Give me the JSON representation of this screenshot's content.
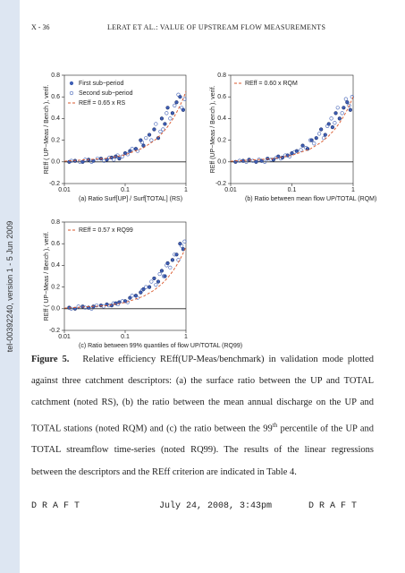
{
  "header": {
    "page": "X - 36",
    "running_title": "LERAT ET AL.: VALUE OF UPSTREAM FLOW MEASUREMENTS"
  },
  "side_stamp": "tel-00392240, version 1 - 5 Jun 2009",
  "chart_data": [
    {
      "type": "scatter",
      "xlabel": "(a) Ratio Surf[UP] / Surf[TOTAL] (RS)",
      "ylabel": "REff ( UP−Meas / Bench ), verif.",
      "xscale": "log",
      "xlim": [
        0.01,
        1
      ],
      "ylim": [
        -0.2,
        0.8
      ],
      "xticks": [
        0.01,
        0.1,
        1
      ],
      "yticks": [
        -0.2,
        {
          "value": 0,
          "label": "0.0"
        },
        0.2,
        0.4,
        0.6,
        0.8
      ],
      "legend": "upper left",
      "series": [
        {
          "name": "First sub−period",
          "style": "filled",
          "color": "#3f5fb5",
          "x": [
            0.012,
            0.015,
            0.02,
            0.025,
            0.03,
            0.04,
            0.05,
            0.06,
            0.07,
            0.08,
            0.1,
            0.12,
            0.15,
            0.18,
            0.2,
            0.25,
            0.3,
            0.35,
            0.4,
            0.45,
            0.5,
            0.6,
            0.7,
            0.8,
            0.9
          ],
          "values": [
            0,
            0.01,
            0,
            0.02,
            0.01,
            0.03,
            0.02,
            0.04,
            0.05,
            0.03,
            0.08,
            0.1,
            0.12,
            0.2,
            0.15,
            0.25,
            0.3,
            0.22,
            0.4,
            0.35,
            0.5,
            0.45,
            0.55,
            0.6,
            0.48
          ]
        },
        {
          "name": "Second sub−period",
          "style": "open",
          "color": "#3f5fb5",
          "x": [
            0.013,
            0.018,
            0.022,
            0.028,
            0.035,
            0.045,
            0.055,
            0.065,
            0.075,
            0.09,
            0.11,
            0.13,
            0.16,
            0.19,
            0.22,
            0.27,
            0.32,
            0.38,
            0.42,
            0.48,
            0.55,
            0.65,
            0.75,
            0.85,
            0.95
          ],
          "values": [
            0.01,
            0,
            0.02,
            0,
            0.03,
            0.01,
            0.04,
            0.02,
            0.06,
            0.05,
            0.07,
            0.12,
            0.1,
            0.18,
            0.22,
            0.2,
            0.35,
            0.28,
            0.3,
            0.45,
            0.4,
            0.52,
            0.62,
            0.5,
            0.58
          ]
        },
        {
          "name": "REff = 0.65 x RS",
          "style": "line",
          "color": "#d9572b",
          "x": [
            0.01,
            0.05,
            0.1,
            0.2,
            0.3,
            0.4,
            0.5,
            0.6,
            0.7,
            0.8,
            0.9,
            1
          ],
          "values": [
            0.0065,
            0.0325,
            0.065,
            0.13,
            0.195,
            0.26,
            0.325,
            0.39,
            0.455,
            0.52,
            0.585,
            0.65
          ]
        }
      ]
    },
    {
      "type": "scatter",
      "xlabel": "(b) Ratio between mean flow UP/TOTAL (RQM)",
      "ylabel": "REff (UP−Meas / Bench ), verif.",
      "xscale": "log",
      "xlim": [
        0.01,
        1
      ],
      "ylim": [
        -0.2,
        0.8
      ],
      "xticks": [
        0.01,
        0.1,
        1
      ],
      "yticks": [
        -0.2,
        {
          "value": 0,
          "label": "0.0"
        },
        0.2,
        0.4,
        0.6,
        0.8
      ],
      "legend": "upper left",
      "series": [
        {
          "style": "filled",
          "color": "#3f5fb5",
          "x": [
            0.012,
            0.016,
            0.02,
            0.026,
            0.032,
            0.04,
            0.05,
            0.06,
            0.07,
            0.085,
            0.1,
            0.12,
            0.15,
            0.18,
            0.21,
            0.25,
            0.3,
            0.35,
            0.4,
            0.46,
            0.52,
            0.6,
            0.7,
            0.8,
            0.9
          ],
          "values": [
            0,
            0.01,
            0.02,
            0,
            0.01,
            0.03,
            0.02,
            0.05,
            0.04,
            0.06,
            0.08,
            0.1,
            0.15,
            0.12,
            0.2,
            0.22,
            0.3,
            0.25,
            0.35,
            0.32,
            0.45,
            0.4,
            0.5,
            0.55,
            0.48
          ]
        },
        {
          "style": "open",
          "color": "#3f5fb5",
          "x": [
            0.014,
            0.018,
            0.023,
            0.029,
            0.036,
            0.046,
            0.056,
            0.066,
            0.078,
            0.092,
            0.11,
            0.14,
            0.17,
            0.2,
            0.23,
            0.28,
            0.33,
            0.38,
            0.44,
            0.5,
            0.56,
            0.66,
            0.76,
            0.86,
            0.96
          ],
          "values": [
            0.01,
            0,
            0.01,
            0.02,
            0,
            0.02,
            0.04,
            0.03,
            0.06,
            0.05,
            0.09,
            0.11,
            0.13,
            0.2,
            0.17,
            0.26,
            0.22,
            0.33,
            0.4,
            0.36,
            0.5,
            0.45,
            0.58,
            0.52,
            0.6
          ]
        },
        {
          "name": "REff = 0.60 x RQM",
          "style": "line",
          "color": "#d9572b",
          "x": [
            0.01,
            0.05,
            0.1,
            0.2,
            0.3,
            0.4,
            0.5,
            0.6,
            0.7,
            0.8,
            0.9,
            1
          ],
          "values": [
            0.006,
            0.03,
            0.06,
            0.12,
            0.18,
            0.24,
            0.3,
            0.36,
            0.42,
            0.48,
            0.54,
            0.6
          ]
        }
      ]
    },
    {
      "type": "scatter",
      "xlabel": "(c) Ratio between 99% quantiles of flow UP/TOTAL (RQ99)",
      "ylabel": "REff ( UP−Meas / Bench ), verif.",
      "xscale": "log",
      "xlim": [
        0.01,
        1
      ],
      "ylim": [
        -0.2,
        0.8
      ],
      "xticks": [
        0.01,
        0.1,
        1
      ],
      "yticks": [
        -0.2,
        {
          "value": 0,
          "label": "0.0"
        },
        0.2,
        0.4,
        0.6,
        0.8
      ],
      "legend": "upper left",
      "series": [
        {
          "style": "filled",
          "color": "#3f5fb5",
          "x": [
            0.012,
            0.015,
            0.02,
            0.025,
            0.03,
            0.04,
            0.05,
            0.06,
            0.07,
            0.08,
            0.1,
            0.12,
            0.15,
            0.18,
            0.2,
            0.25,
            0.3,
            0.35,
            0.4,
            0.45,
            0.5,
            0.6,
            0.7,
            0.8,
            0.9
          ],
          "values": [
            0.01,
            0,
            0.02,
            0.01,
            0.02,
            0.03,
            0.04,
            0.03,
            0.05,
            0.06,
            0.07,
            0.1,
            0.12,
            0.15,
            0.18,
            0.2,
            0.28,
            0.25,
            0.35,
            0.3,
            0.42,
            0.45,
            0.5,
            0.6,
            0.55
          ]
        },
        {
          "style": "open",
          "color": "#3f5fb5",
          "x": [
            0.013,
            0.017,
            0.022,
            0.028,
            0.034,
            0.044,
            0.054,
            0.064,
            0.076,
            0.09,
            0.11,
            0.13,
            0.16,
            0.19,
            0.22,
            0.27,
            0.32,
            0.37,
            0.43,
            0.48,
            0.55,
            0.65,
            0.75,
            0.85,
            0.95
          ],
          "values": [
            0,
            0.02,
            0.01,
            0,
            0.03,
            0.02,
            0.03,
            0.05,
            0.04,
            0.07,
            0.06,
            0.12,
            0.1,
            0.17,
            0.2,
            0.25,
            0.22,
            0.32,
            0.3,
            0.4,
            0.38,
            0.5,
            0.45,
            0.58,
            0.62
          ]
        },
        {
          "name": "REff = 0.57 x RQ99",
          "style": "line",
          "color": "#d9572b",
          "x": [
            0.01,
            0.05,
            0.1,
            0.2,
            0.3,
            0.4,
            0.5,
            0.6,
            0.7,
            0.8,
            0.9,
            1
          ],
          "values": [
            0.0057,
            0.0285,
            0.057,
            0.114,
            0.171,
            0.228,
            0.285,
            0.342,
            0.399,
            0.456,
            0.513,
            0.57
          ]
        }
      ]
    }
  ],
  "caption": {
    "label": "Figure 5.",
    "text_1": "Relative efficiency REff(UP-Meas/benchmark) in validation mode plotted against three catchment descriptors: (a) the surface ratio between the UP and TOTAL catchment (noted RS), (b) the ratio between the mean annual discharge on the UP and TOTAL stations (noted RQM) and (c) the ratio between the 99",
    "sup": "th",
    "text_2": " percentile of the UP and TOTAL streamflow time-series (noted RQ99). The results of the linear regressions between the descriptors and the REff criterion are indicated in Table 4."
  },
  "footer": {
    "left": "D R A F T",
    "center": "July 24, 2008, 3:43pm",
    "right": "D R A F T"
  }
}
